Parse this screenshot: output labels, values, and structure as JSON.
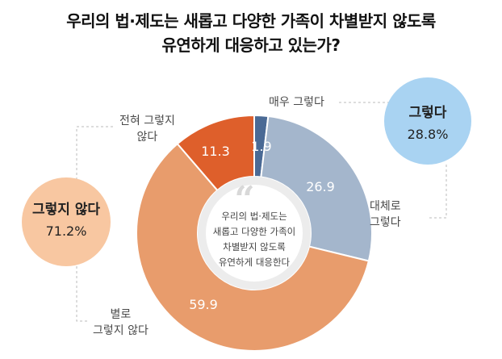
{
  "title_lines": [
    "우리의 법·제도는 새롭고 다양한 가족이 차별받지 않도록",
    "유연하게 대응하고 있는가?"
  ],
  "chart_data": {
    "type": "pie",
    "variant": "donut",
    "slices": [
      {
        "label": "매우 그렇다",
        "value": 1.9,
        "color": "#4a6a95"
      },
      {
        "label": "대체로 그렇다",
        "value": 26.9,
        "color": "#a4b6cc"
      },
      {
        "label": "별로 그렇지 않다",
        "value": 59.9,
        "color": "#e89c6c"
      },
      {
        "label": "전혀 그렇지 않다",
        "value": 11.3,
        "color": "#de5f2b"
      }
    ],
    "slice_labels": [
      "1.9",
      "26.9",
      "59.9",
      "11.3"
    ],
    "category_labels": {
      "very_yes": "매우 그렇다",
      "mostly_yes": [
        "대체로",
        "그렇다"
      ],
      "not_really": [
        "별로",
        "그렇지 않다"
      ],
      "not_at_all": [
        "전혀 그렇지",
        "않다"
      ]
    },
    "center_text": [
      "우리의 법·제도는",
      "새롭고 다양한 가족이",
      "차별받지 않도록",
      "유연하게 대응한다"
    ],
    "summary": {
      "yes": {
        "label": "그렇다",
        "value": "28.8%",
        "color": "#a9d3f2"
      },
      "no": {
        "label": "그렇지 않다",
        "value": "71.2%",
        "color": "#f8c7a1"
      }
    }
  }
}
